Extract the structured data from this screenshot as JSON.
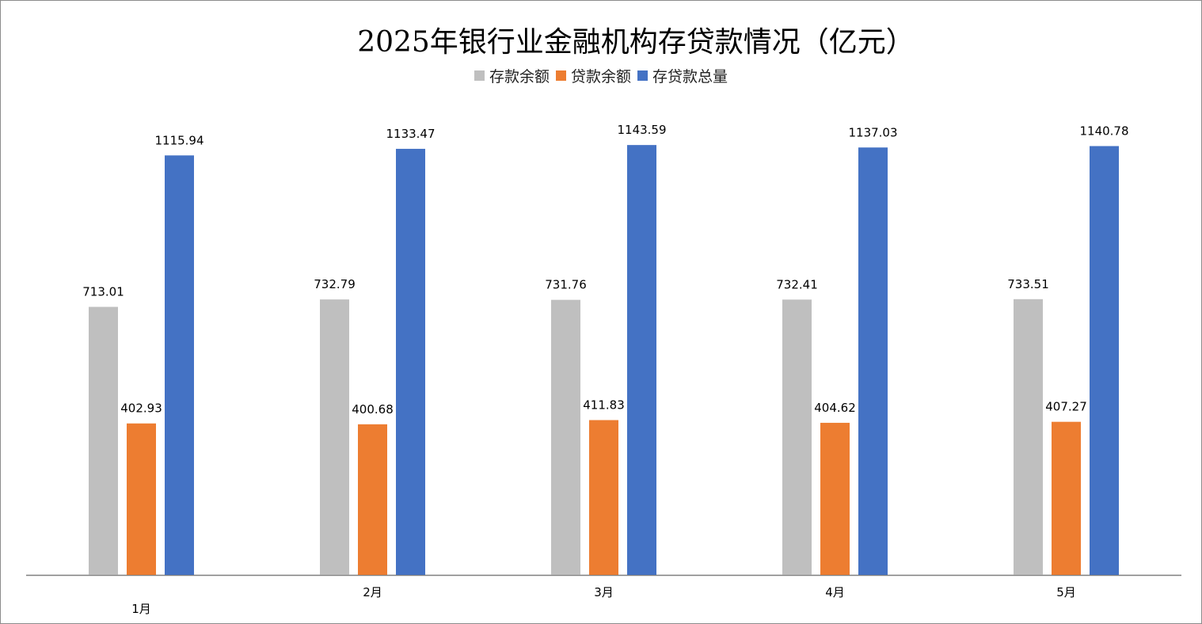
{
  "chart_data": {
    "type": "bar",
    "title": "2025年银行业金融机构存贷款情况（亿元）",
    "categories": [
      "1月",
      "2月",
      "3月",
      "4月",
      "5月"
    ],
    "series": [
      {
        "name": "存款余额",
        "color": "#bfbfbf",
        "values": [
          713.01,
          732.79,
          731.76,
          732.41,
          733.51
        ]
      },
      {
        "name": "贷款余额",
        "color": "#ed7d31",
        "values": [
          402.93,
          400.68,
          411.83,
          404.62,
          407.27
        ]
      },
      {
        "name": "存贷款总量",
        "color": "#4472c4",
        "values": [
          1115.94,
          1133.47,
          1143.59,
          1137.03,
          1140.78
        ]
      }
    ],
    "ylim": [
      0,
      1280
    ],
    "grid": false,
    "legend_position": "top",
    "axis_color": "#7f7f7f"
  }
}
